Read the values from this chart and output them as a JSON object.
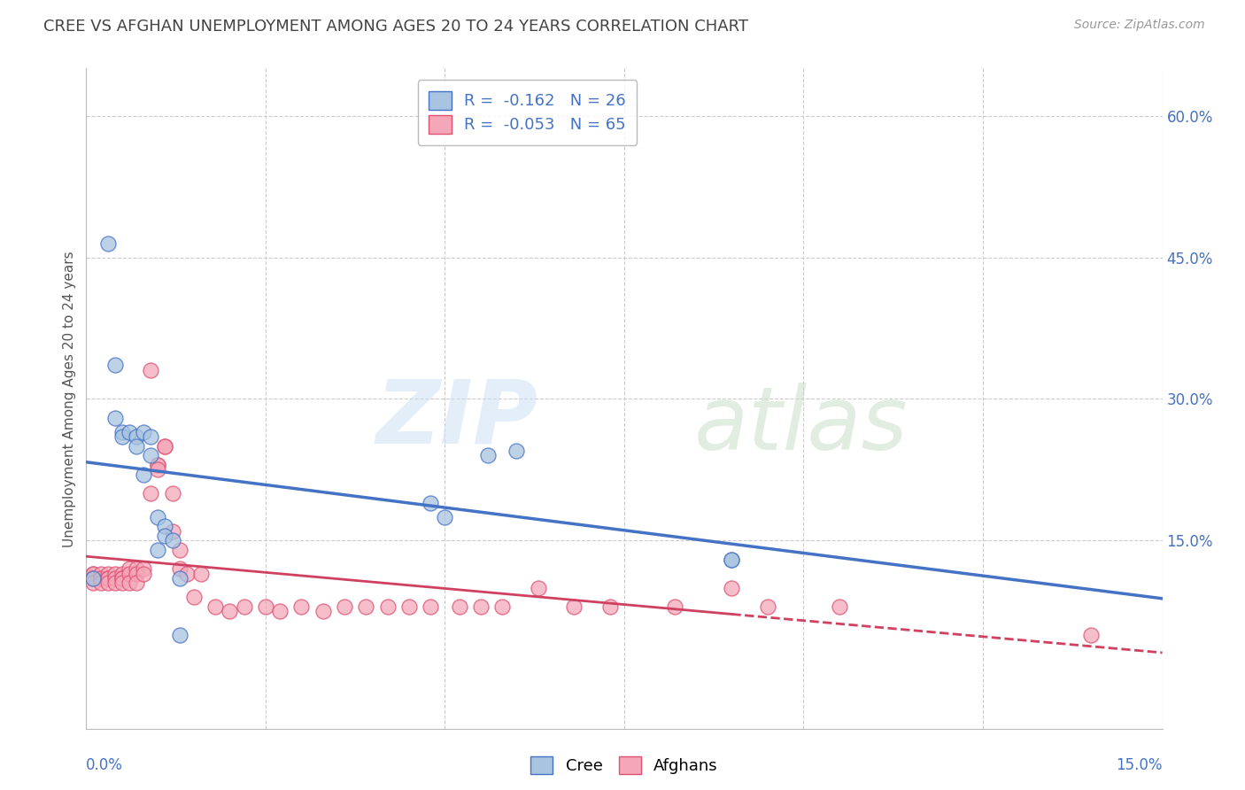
{
  "title": "CREE VS AFGHAN UNEMPLOYMENT AMONG AGES 20 TO 24 YEARS CORRELATION CHART",
  "source": "Source: ZipAtlas.com",
  "xlabel_bottom_left": "0.0%",
  "xlabel_bottom_right": "15.0%",
  "ylabel": "Unemployment Among Ages 20 to 24 years",
  "ytick_positions": [
    0.0,
    0.15,
    0.3,
    0.45,
    0.6
  ],
  "ytick_labels": [
    "",
    "15.0%",
    "30.0%",
    "45.0%",
    "60.0%"
  ],
  "xlim": [
    0.0,
    0.15
  ],
  "ylim": [
    -0.05,
    0.65
  ],
  "cree_color": "#a8c4e0",
  "afghan_color": "#f4a7b9",
  "cree_edge_color": "#4472c4",
  "afghan_edge_color": "#e05070",
  "cree_line_color": "#4472c4",
  "afghan_line_color": "#d04060",
  "cree_R": "-0.162",
  "cree_N": "26",
  "afghan_R": "-0.053",
  "afghan_N": "65",
  "legend_label_cree": "Cree",
  "legend_label_afghan": "Afghans",
  "grid_color": "#cccccc",
  "background_color": "#ffffff",
  "title_color": "#444444",
  "axis_label_color": "#4472c4",
  "cree_x": [
    0.001,
    0.003,
    0.004,
    0.004,
    0.005,
    0.005,
    0.006,
    0.007,
    0.007,
    0.008,
    0.008,
    0.009,
    0.009,
    0.01,
    0.01,
    0.011,
    0.011,
    0.012,
    0.013,
    0.013,
    0.048,
    0.05,
    0.056,
    0.06,
    0.09,
    0.09
  ],
  "cree_y": [
    0.11,
    0.465,
    0.336,
    0.28,
    0.265,
    0.26,
    0.265,
    0.26,
    0.25,
    0.265,
    0.22,
    0.26,
    0.24,
    0.175,
    0.14,
    0.165,
    0.155,
    0.15,
    0.11,
    0.05,
    0.19,
    0.175,
    0.24,
    0.245,
    0.13,
    0.13
  ],
  "afghan_x": [
    0.001,
    0.001,
    0.001,
    0.001,
    0.001,
    0.002,
    0.002,
    0.002,
    0.002,
    0.003,
    0.003,
    0.003,
    0.003,
    0.004,
    0.004,
    0.004,
    0.005,
    0.005,
    0.005,
    0.005,
    0.006,
    0.006,
    0.006,
    0.007,
    0.007,
    0.007,
    0.008,
    0.008,
    0.009,
    0.009,
    0.01,
    0.01,
    0.01,
    0.011,
    0.011,
    0.012,
    0.012,
    0.013,
    0.013,
    0.014,
    0.015,
    0.016,
    0.018,
    0.02,
    0.022,
    0.025,
    0.027,
    0.03,
    0.033,
    0.036,
    0.039,
    0.042,
    0.045,
    0.048,
    0.052,
    0.055,
    0.058,
    0.063,
    0.068,
    0.073,
    0.082,
    0.09,
    0.095,
    0.105,
    0.14
  ],
  "afghan_y": [
    0.115,
    0.115,
    0.11,
    0.11,
    0.105,
    0.115,
    0.11,
    0.11,
    0.105,
    0.115,
    0.11,
    0.11,
    0.105,
    0.115,
    0.11,
    0.105,
    0.115,
    0.11,
    0.11,
    0.105,
    0.12,
    0.115,
    0.105,
    0.12,
    0.115,
    0.105,
    0.12,
    0.115,
    0.33,
    0.2,
    0.23,
    0.23,
    0.225,
    0.25,
    0.25,
    0.2,
    0.16,
    0.14,
    0.12,
    0.115,
    0.09,
    0.115,
    0.08,
    0.075,
    0.08,
    0.08,
    0.075,
    0.08,
    0.075,
    0.08,
    0.08,
    0.08,
    0.08,
    0.08,
    0.08,
    0.08,
    0.08,
    0.1,
    0.08,
    0.08,
    0.08,
    0.1,
    0.08,
    0.08,
    0.05
  ]
}
